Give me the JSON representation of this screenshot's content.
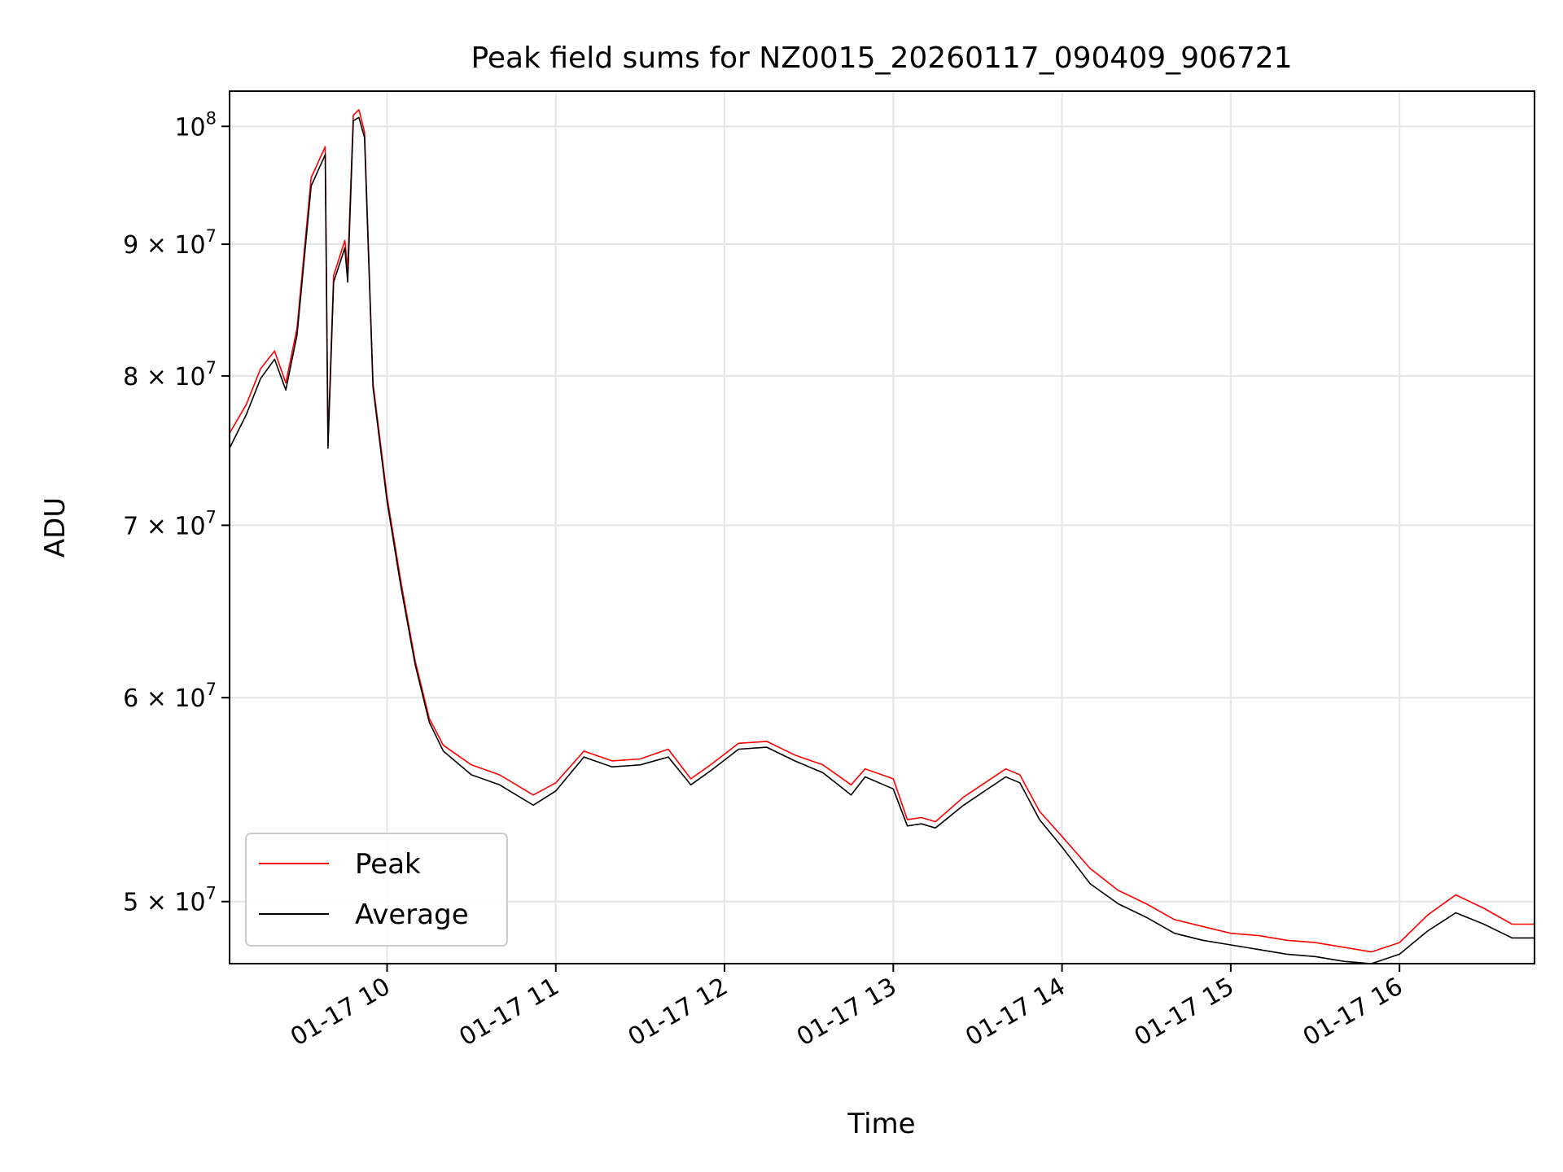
{
  "chart_data": {
    "type": "line",
    "title": "Peak field sums for NZ0015_20260117_090409_906721",
    "xlabel": "Time",
    "ylabel": "ADU",
    "y_scale": "log",
    "grid": true,
    "legend_position": "lower-left",
    "xlim": [
      "2026-01-17 09:04",
      "2026-01-17 16:48"
    ],
    "ylim": [
      47300000,
      103200000
    ],
    "x_ticks": [
      {
        "value": "2026-01-17 10:00",
        "label": "01-17 10"
      },
      {
        "value": "2026-01-17 11:00",
        "label": "01-17 11"
      },
      {
        "value": "2026-01-17 12:00",
        "label": "01-17 12"
      },
      {
        "value": "2026-01-17 13:00",
        "label": "01-17 13"
      },
      {
        "value": "2026-01-17 14:00",
        "label": "01-17 14"
      },
      {
        "value": "2026-01-17 15:00",
        "label": "01-17 15"
      },
      {
        "value": "2026-01-17 16:00",
        "label": "01-17 16"
      }
    ],
    "y_ticks": [
      {
        "value": 50000000,
        "mantissa": "5",
        "times": "×",
        "base": "10",
        "exp": "7"
      },
      {
        "value": 60000000,
        "mantissa": "6",
        "times": "×",
        "base": "10",
        "exp": "7"
      },
      {
        "value": 70000000,
        "mantissa": "7",
        "times": "×",
        "base": "10",
        "exp": "7"
      },
      {
        "value": 80000000,
        "mantissa": "8",
        "times": "×",
        "base": "10",
        "exp": "7"
      },
      {
        "value": 90000000,
        "mantissa": "9",
        "times": "×",
        "base": "10",
        "exp": "7"
      },
      {
        "value": 100000000,
        "mantissa": "",
        "times": "",
        "base": "10",
        "exp": "8"
      }
    ],
    "series": [
      {
        "name": "Peak",
        "color": "#ff0000",
        "points": [
          [
            "2026-01-17 09:04",
            76000000
          ],
          [
            "2026-01-17 09:10",
            78000000
          ],
          [
            "2026-01-17 09:15",
            80500000
          ],
          [
            "2026-01-17 09:20",
            81800000
          ],
          [
            "2026-01-17 09:24",
            79500000
          ],
          [
            "2026-01-17 09:28",
            83500000
          ],
          [
            "2026-01-17 09:33",
            95500000
          ],
          [
            "2026-01-17 09:38",
            98200000
          ],
          [
            "2026-01-17 09:39",
            75500000
          ],
          [
            "2026-01-17 09:41",
            87500000
          ],
          [
            "2026-01-17 09:45",
            90300000
          ],
          [
            "2026-01-17 09:46",
            88000000
          ],
          [
            "2026-01-17 09:48",
            101000000
          ],
          [
            "2026-01-17 09:50",
            101500000
          ],
          [
            "2026-01-17 09:52",
            99500000
          ],
          [
            "2026-01-17 09:55",
            79500000
          ],
          [
            "2026-01-17 10:00",
            71800000
          ],
          [
            "2026-01-17 10:05",
            66500000
          ],
          [
            "2026-01-17 10:10",
            62000000
          ],
          [
            "2026-01-17 10:15",
            58900000
          ],
          [
            "2026-01-17 10:20",
            57500000
          ],
          [
            "2026-01-17 10:30",
            56500000
          ],
          [
            "2026-01-17 10:40",
            56000000
          ],
          [
            "2026-01-17 10:52",
            55000000
          ],
          [
            "2026-01-17 11:00",
            55600000
          ],
          [
            "2026-01-17 11:10",
            57200000
          ],
          [
            "2026-01-17 11:20",
            56700000
          ],
          [
            "2026-01-17 11:30",
            56800000
          ],
          [
            "2026-01-17 11:40",
            57300000
          ],
          [
            "2026-01-17 11:48",
            55800000
          ],
          [
            "2026-01-17 11:55",
            56500000
          ],
          [
            "2026-01-17 12:05",
            57600000
          ],
          [
            "2026-01-17 12:15",
            57700000
          ],
          [
            "2026-01-17 12:25",
            57000000
          ],
          [
            "2026-01-17 12:35",
            56500000
          ],
          [
            "2026-01-17 12:45",
            55500000
          ],
          [
            "2026-01-17 12:50",
            56300000
          ],
          [
            "2026-01-17 13:00",
            55800000
          ],
          [
            "2026-01-17 13:05",
            53800000
          ],
          [
            "2026-01-17 13:10",
            53900000
          ],
          [
            "2026-01-17 13:15",
            53700000
          ],
          [
            "2026-01-17 13:25",
            54900000
          ],
          [
            "2026-01-17 13:40",
            56300000
          ],
          [
            "2026-01-17 13:45",
            56000000
          ],
          [
            "2026-01-17 13:52",
            54200000
          ],
          [
            "2026-01-17 14:00",
            53000000
          ],
          [
            "2026-01-17 14:10",
            51500000
          ],
          [
            "2026-01-17 14:20",
            50500000
          ],
          [
            "2026-01-17 14:30",
            49900000
          ],
          [
            "2026-01-17 14:40",
            49200000
          ],
          [
            "2026-01-17 14:50",
            48900000
          ],
          [
            "2026-01-17 15:00",
            48600000
          ],
          [
            "2026-01-17 15:10",
            48500000
          ],
          [
            "2026-01-17 15:20",
            48300000
          ],
          [
            "2026-01-17 15:30",
            48200000
          ],
          [
            "2026-01-17 15:40",
            48000000
          ],
          [
            "2026-01-17 15:50",
            47800000
          ],
          [
            "2026-01-17 16:00",
            48200000
          ],
          [
            "2026-01-17 16:10",
            49400000
          ],
          [
            "2026-01-17 16:20",
            50300000
          ],
          [
            "2026-01-17 16:30",
            49700000
          ],
          [
            "2026-01-17 16:40",
            49000000
          ],
          [
            "2026-01-17 16:48",
            49000000
          ]
        ]
      },
      {
        "name": "Average",
        "color": "#000000",
        "points": [
          [
            "2026-01-17 09:04",
            75000000
          ],
          [
            "2026-01-17 09:10",
            77300000
          ],
          [
            "2026-01-17 09:15",
            79800000
          ],
          [
            "2026-01-17 09:20",
            81200000
          ],
          [
            "2026-01-17 09:24",
            79000000
          ],
          [
            "2026-01-17 09:28",
            83000000
          ],
          [
            "2026-01-17 09:33",
            94800000
          ],
          [
            "2026-01-17 09:38",
            97500000
          ],
          [
            "2026-01-17 09:39",
            75000000
          ],
          [
            "2026-01-17 09:41",
            87000000
          ],
          [
            "2026-01-17 09:45",
            89700000
          ],
          [
            "2026-01-17 09:46",
            87000000
          ],
          [
            "2026-01-17 09:48",
            100500000
          ],
          [
            "2026-01-17 09:50",
            100800000
          ],
          [
            "2026-01-17 09:52",
            99000000
          ],
          [
            "2026-01-17 09:55",
            79200000
          ],
          [
            "2026-01-17 10:00",
            71500000
          ],
          [
            "2026-01-17 10:05",
            66200000
          ],
          [
            "2026-01-17 10:10",
            61800000
          ],
          [
            "2026-01-17 10:15",
            58700000
          ],
          [
            "2026-01-17 10:20",
            57200000
          ],
          [
            "2026-01-17 10:30",
            56000000
          ],
          [
            "2026-01-17 10:40",
            55500000
          ],
          [
            "2026-01-17 10:52",
            54500000
          ],
          [
            "2026-01-17 11:00",
            55200000
          ],
          [
            "2026-01-17 11:10",
            56900000
          ],
          [
            "2026-01-17 11:20",
            56400000
          ],
          [
            "2026-01-17 11:30",
            56500000
          ],
          [
            "2026-01-17 11:40",
            56900000
          ],
          [
            "2026-01-17 11:48",
            55500000
          ],
          [
            "2026-01-17 11:55",
            56200000
          ],
          [
            "2026-01-17 12:05",
            57300000
          ],
          [
            "2026-01-17 12:15",
            57400000
          ],
          [
            "2026-01-17 12:25",
            56700000
          ],
          [
            "2026-01-17 12:35",
            56100000
          ],
          [
            "2026-01-17 12:45",
            55000000
          ],
          [
            "2026-01-17 12:50",
            55900000
          ],
          [
            "2026-01-17 13:00",
            55300000
          ],
          [
            "2026-01-17 13:05",
            53500000
          ],
          [
            "2026-01-17 13:10",
            53600000
          ],
          [
            "2026-01-17 13:15",
            53400000
          ],
          [
            "2026-01-17 13:25",
            54500000
          ],
          [
            "2026-01-17 13:40",
            55900000
          ],
          [
            "2026-01-17 13:45",
            55600000
          ],
          [
            "2026-01-17 13:52",
            53800000
          ],
          [
            "2026-01-17 14:00",
            52500000
          ],
          [
            "2026-01-17 14:10",
            50800000
          ],
          [
            "2026-01-17 14:20",
            49900000
          ],
          [
            "2026-01-17 14:30",
            49300000
          ],
          [
            "2026-01-17 14:40",
            48600000
          ],
          [
            "2026-01-17 14:50",
            48300000
          ],
          [
            "2026-01-17 15:00",
            48100000
          ],
          [
            "2026-01-17 15:10",
            47900000
          ],
          [
            "2026-01-17 15:20",
            47700000
          ],
          [
            "2026-01-17 15:30",
            47600000
          ],
          [
            "2026-01-17 15:40",
            47400000
          ],
          [
            "2026-01-17 15:50",
            47300000
          ],
          [
            "2026-01-17 16:00",
            47700000
          ],
          [
            "2026-01-17 16:10",
            48700000
          ],
          [
            "2026-01-17 16:20",
            49500000
          ],
          [
            "2026-01-17 16:30",
            49000000
          ],
          [
            "2026-01-17 16:40",
            48400000
          ],
          [
            "2026-01-17 16:48",
            48400000
          ]
        ]
      }
    ]
  }
}
